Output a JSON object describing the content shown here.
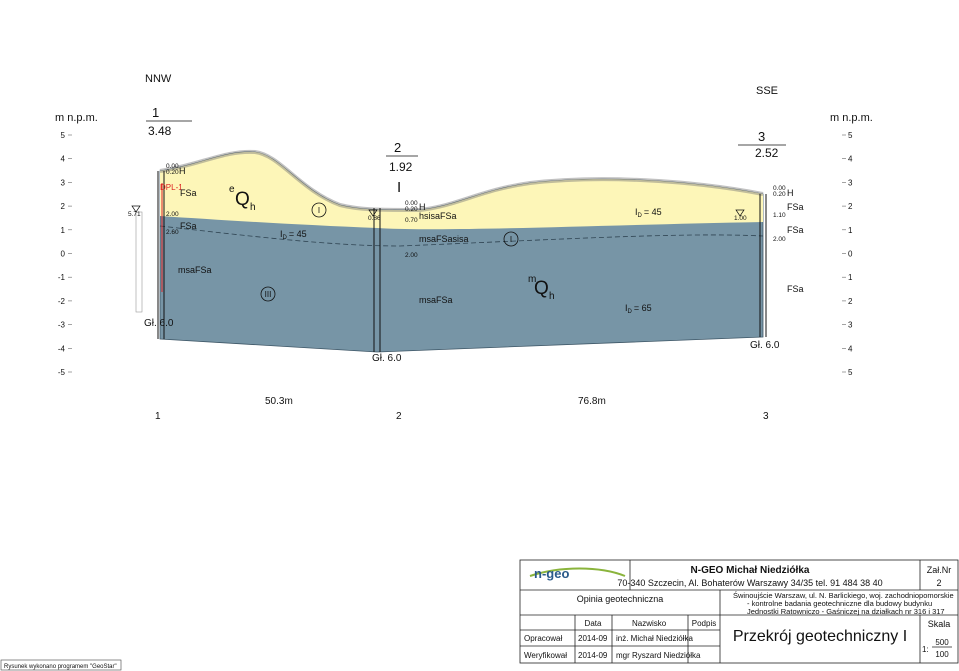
{
  "directions": {
    "left": "NNW",
    "right": "SSE"
  },
  "axis": {
    "title_left": "m n.p.m.",
    "title_right": "m n.p.m.",
    "left_ticks": [
      "5",
      "4",
      "3",
      "2",
      "1",
      "0",
      "-1",
      "-2",
      "-3",
      "-4",
      "-5"
    ],
    "right_ticks": [
      "5",
      "4",
      "3",
      "2",
      "1",
      "0",
      "1",
      "2",
      "3",
      "4",
      "5"
    ]
  },
  "section": "I",
  "boreholes": [
    {
      "number": "1",
      "elevation": "3.48",
      "depth_note": "Gł. 6.0",
      "probe": "DPL-1",
      "water": "5.71",
      "depths": [
        "0.00",
        "0.20",
        "2.00",
        "2.60"
      ],
      "soils": [
        "H",
        "FSa",
        "FSa",
        "msaFSa"
      ]
    },
    {
      "number": "2",
      "elevation": "1.92",
      "depth_note": "Gł. 6.0",
      "water": "0.86",
      "depths": [
        "0.00",
        "0.20",
        "0.70",
        "2.00"
      ],
      "soils": [
        "H",
        "hsisaFSa",
        "msaFSasisa",
        "msaFSa"
      ]
    },
    {
      "number": "3",
      "elevation": "2.52",
      "depth_note": "Gł. 6.0",
      "water": "1.00",
      "depths": [
        "0.00",
        "0.20",
        "1.10",
        "2.00"
      ],
      "soils": [
        "H",
        "FSa",
        "FSa",
        "FSa"
      ]
    }
  ],
  "geology": {
    "upper": {
      "prefix": "e",
      "symbol": "Q",
      "subscript": "h"
    },
    "lower": {
      "prefix": "m",
      "symbol": "Q",
      "subscript": "h"
    }
  },
  "zones": [
    "III",
    "I",
    "I"
  ],
  "density": [
    {
      "symbol": "I",
      "subscript": "D",
      "value": "= 45"
    },
    {
      "symbol": "I",
      "subscript": "D",
      "value": "= 45"
    },
    {
      "symbol": "I",
      "subscript": "D",
      "value": "= 65"
    }
  ],
  "distances": [
    "50.3m",
    "76.8m"
  ],
  "stations": [
    "1",
    "2",
    "3"
  ],
  "title_block": {
    "logo": "n-geo",
    "company": "N-GEO Michał Niedziółka",
    "address": "70-340 Szczecin, Al. Bohaterów Warszawy 34/35 tel. 91 484 38 40",
    "attachment_label": "Zał.Nr",
    "attachment": "2",
    "document": "Opinia geotechniczna",
    "location": [
      "Świnoujście Warszaw, ul. N. Barlickiego, woj. zachodniopomorskie",
      "- kontrolne badania geotechniczne dla budowy budynku",
      "Jednostki Ratowniczo - Gaśniczej na działkach nr 316 i 317"
    ],
    "table": {
      "header": [
        "Data",
        "Nazwisko",
        "Podpis"
      ],
      "rows": [
        [
          "Opracował",
          "2014-09",
          "inż. Michał Niedziółka"
        ],
        [
          "Weryfikował",
          "2014-09",
          "mgr Ryszard Niedziółka"
        ]
      ]
    },
    "drawing_title": "Przekrój geotechniczny I",
    "scale_label": "Skala",
    "scale_prefix": "1:",
    "scale_h": "500",
    "scale_v": "100"
  },
  "footer": "Rysunek wykonano programem \"GeoStar\""
}
